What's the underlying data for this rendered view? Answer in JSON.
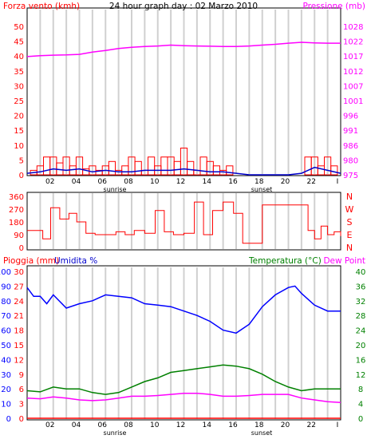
{
  "colors": {
    "wind": "#ff0000",
    "gust": "#0000cc",
    "green": "#008000",
    "pressure": "#ff00ff",
    "humidity": "#0000ff",
    "temperature": "#008000",
    "dewpoint": "#ff00ff",
    "rain": "#ff0000",
    "grid": "#d0d0d0",
    "frame": "#000000"
  },
  "chart_data": [
    {
      "type": "bar",
      "title": "24 hour graph day : 02 Marzo 2010",
      "ylabel_left": "Forza vento (kmh)",
      "ylabel_right": "Pressione (mb)",
      "ylim_left": [
        0,
        50
      ],
      "ylim_right": [
        975,
        1028
      ],
      "yticks_left": [
        "0",
        "5",
        "10",
        "15",
        "20",
        "25",
        "30",
        "35",
        "40",
        "45",
        "50"
      ],
      "yticks_right": [
        "975",
        "980",
        "986",
        "991",
        "996",
        "1001",
        "1007",
        "1012",
        "1017",
        "1022",
        "1028"
      ],
      "xticks": [
        "02",
        "04",
        "06",
        "08",
        "10",
        "12",
        "14",
        "16",
        "18",
        "20",
        "22",
        "I"
      ],
      "xlabels_extra": [
        "sunrise",
        "sunset"
      ],
      "xlim": [
        0,
        24
      ],
      "series": [
        {
          "name": "Pressione (mb)",
          "type": "line",
          "x": [
            0,
            1,
            2,
            3,
            4,
            5,
            6,
            7,
            8,
            9,
            10,
            11,
            12,
            13,
            14,
            15,
            16,
            17,
            18,
            19,
            20,
            21,
            22,
            23,
            24
          ],
          "values": [
            1017.2,
            1017.5,
            1017.7,
            1017.8,
            1018.0,
            1018.8,
            1019.4,
            1020.1,
            1020.5,
            1020.8,
            1021.0,
            1021.3,
            1021.1,
            1021.0,
            1020.9,
            1020.8,
            1020.8,
            1021.0,
            1021.3,
            1021.6,
            1022.0,
            1022.3,
            1022.1,
            1022.0,
            1022.0
          ]
        },
        {
          "name": "Forza vento (kmh)",
          "type": "bar",
          "x": [
            0.5,
            1.0,
            1.5,
            2.0,
            2.5,
            3.0,
            3.5,
            4.0,
            4.5,
            5.0,
            5.5,
            6.0,
            6.5,
            7.0,
            7.5,
            8.0,
            8.5,
            9.0,
            9.5,
            10.0,
            10.5,
            11.0,
            11.5,
            12.0,
            12.5,
            13.0,
            13.5,
            14.0,
            14.5,
            15.0,
            15.5,
            21.5,
            22.0,
            22.5,
            23.0,
            23.5
          ],
          "values": [
            1.5,
            3,
            6,
            6,
            4,
            6,
            3,
            6,
            2,
            3,
            1.5,
            3,
            4.5,
            1.5,
            3,
            6,
            4.5,
            1.5,
            6,
            3,
            6,
            6,
            4.5,
            9,
            4.5,
            1.5,
            6,
            4.5,
            3,
            1.5,
            3,
            6,
            6,
            3,
            6,
            3
          ]
        },
        {
          "name": "gust",
          "type": "line",
          "x": [
            0,
            1,
            2,
            3,
            4,
            5,
            6,
            7,
            8,
            9,
            10,
            11,
            12,
            13,
            14,
            15,
            16,
            17,
            18,
            19,
            20,
            21,
            22,
            23,
            24
          ],
          "values": [
            0.5,
            1,
            2,
            1.5,
            2,
            1,
            1.5,
            1,
            1,
            1.5,
            1.5,
            1.5,
            2,
            1.5,
            1,
            1,
            0.5,
            0,
            0,
            0,
            0,
            0.5,
            2.5,
            1.5,
            0.5
          ]
        }
      ]
    },
    {
      "type": "line",
      "ylabel_right": [
        "N",
        "W",
        "S",
        "E",
        "N"
      ],
      "ylim": [
        0,
        360
      ],
      "yticks": [
        "0",
        "90",
        "180",
        "270",
        "360"
      ],
      "yticks_shown": [
        "360",
        "270",
        "180",
        "90",
        "0"
      ],
      "xlim": [
        0,
        24
      ],
      "series": [
        {
          "name": "direzione vento",
          "type": "line",
          "x": [
            0,
            0.8,
            1.2,
            1.8,
            2.5,
            3.2,
            3.8,
            4.5,
            5.2,
            6,
            6.8,
            7.5,
            8.2,
            9,
            9.8,
            10.5,
            11.2,
            12,
            12.8,
            13.5,
            14.2,
            15,
            15.8,
            16.5,
            17.2,
            18,
            19,
            20,
            21,
            21.5,
            22,
            22.5,
            23,
            23.5,
            24
          ],
          "values": [
            120,
            120,
            60,
            280,
            200,
            240,
            180,
            100,
            90,
            90,
            110,
            90,
            120,
            100,
            260,
            110,
            90,
            100,
            320,
            90,
            260,
            320,
            240,
            30,
            30,
            300,
            300,
            300,
            300,
            120,
            60,
            150,
            90,
            110,
            80
          ]
        }
      ]
    },
    {
      "type": "line",
      "ylabel_left": "Pioggia (mm)",
      "ylabel_left2": "Umidita %",
      "ylabel_right": "Temperatura (°C)",
      "ylabel_right2": "Dew Point",
      "ylim_left_humidity": [
        0,
        100
      ],
      "ylim_left_rain": [
        0,
        30
      ],
      "ylim_right": [
        0,
        40
      ],
      "yticks_left_humidity": [
        "100",
        "90",
        "80",
        "70",
        "60",
        "50",
        "40",
        "30",
        "20",
        "10",
        "0"
      ],
      "yticks_left_rain": [
        "30",
        "27",
        "24",
        "21",
        "18",
        "15",
        "12",
        "9",
        "6",
        "3",
        "0"
      ],
      "yticks_right": [
        "40",
        "36",
        "32",
        "28",
        "24",
        "20",
        "16",
        "12",
        "8",
        "4",
        "0"
      ],
      "xticks": [
        "02",
        "04",
        "06",
        "08",
        "10",
        "12",
        "14",
        "16",
        "18",
        "20",
        "22",
        "I"
      ],
      "xlabels_extra": [
        "sunrise",
        "sunset"
      ],
      "xlim": [
        0,
        24
      ],
      "series": [
        {
          "name": "Umidita %",
          "type": "line",
          "x": [
            0,
            0.5,
            1,
            1.5,
            2,
            3,
            4,
            5,
            6,
            7,
            8,
            9,
            10,
            11,
            12,
            13,
            14,
            15,
            16,
            17,
            18,
            19,
            20,
            20.5,
            21,
            22,
            23,
            24
          ],
          "values": [
            89,
            83,
            83,
            78,
            84,
            75,
            78,
            80,
            84,
            83,
            82,
            78,
            77,
            76,
            73,
            70,
            66,
            60,
            58,
            64,
            76,
            84,
            89,
            90,
            85,
            77,
            73,
            73
          ]
        },
        {
          "name": "Temperatura (°C)",
          "type": "line",
          "x": [
            0,
            1,
            2,
            3,
            4,
            5,
            6,
            7,
            8,
            9,
            10,
            11,
            12,
            13,
            14,
            15,
            16,
            17,
            18,
            19,
            20,
            21,
            22,
            23,
            24
          ],
          "values": [
            7.5,
            7.2,
            8.5,
            8.0,
            8.0,
            7.0,
            6.5,
            7.0,
            8.5,
            10.0,
            11.0,
            12.5,
            13.0,
            13.5,
            14.0,
            14.5,
            14.2,
            13.5,
            12.0,
            10.0,
            8.5,
            7.5,
            8.0,
            8.0,
            8.0
          ]
        },
        {
          "name": "Dew Point",
          "type": "line",
          "x": [
            0,
            1,
            2,
            3,
            4,
            5,
            6,
            7,
            8,
            9,
            10,
            11,
            12,
            13,
            14,
            15,
            16,
            17,
            18,
            19,
            20,
            21,
            22,
            23,
            24
          ],
          "values": [
            5.5,
            5.3,
            5.8,
            5.5,
            5.0,
            4.8,
            5.0,
            5.5,
            6.0,
            6.0,
            6.2,
            6.5,
            6.8,
            6.8,
            6.5,
            6.0,
            6.0,
            6.2,
            6.5,
            6.5,
            6.5,
            5.5,
            5.0,
            4.5,
            4.3
          ]
        },
        {
          "name": "Pioggia (mm)",
          "type": "line",
          "x": [
            0,
            24
          ],
          "values": [
            0,
            0
          ]
        }
      ]
    }
  ]
}
